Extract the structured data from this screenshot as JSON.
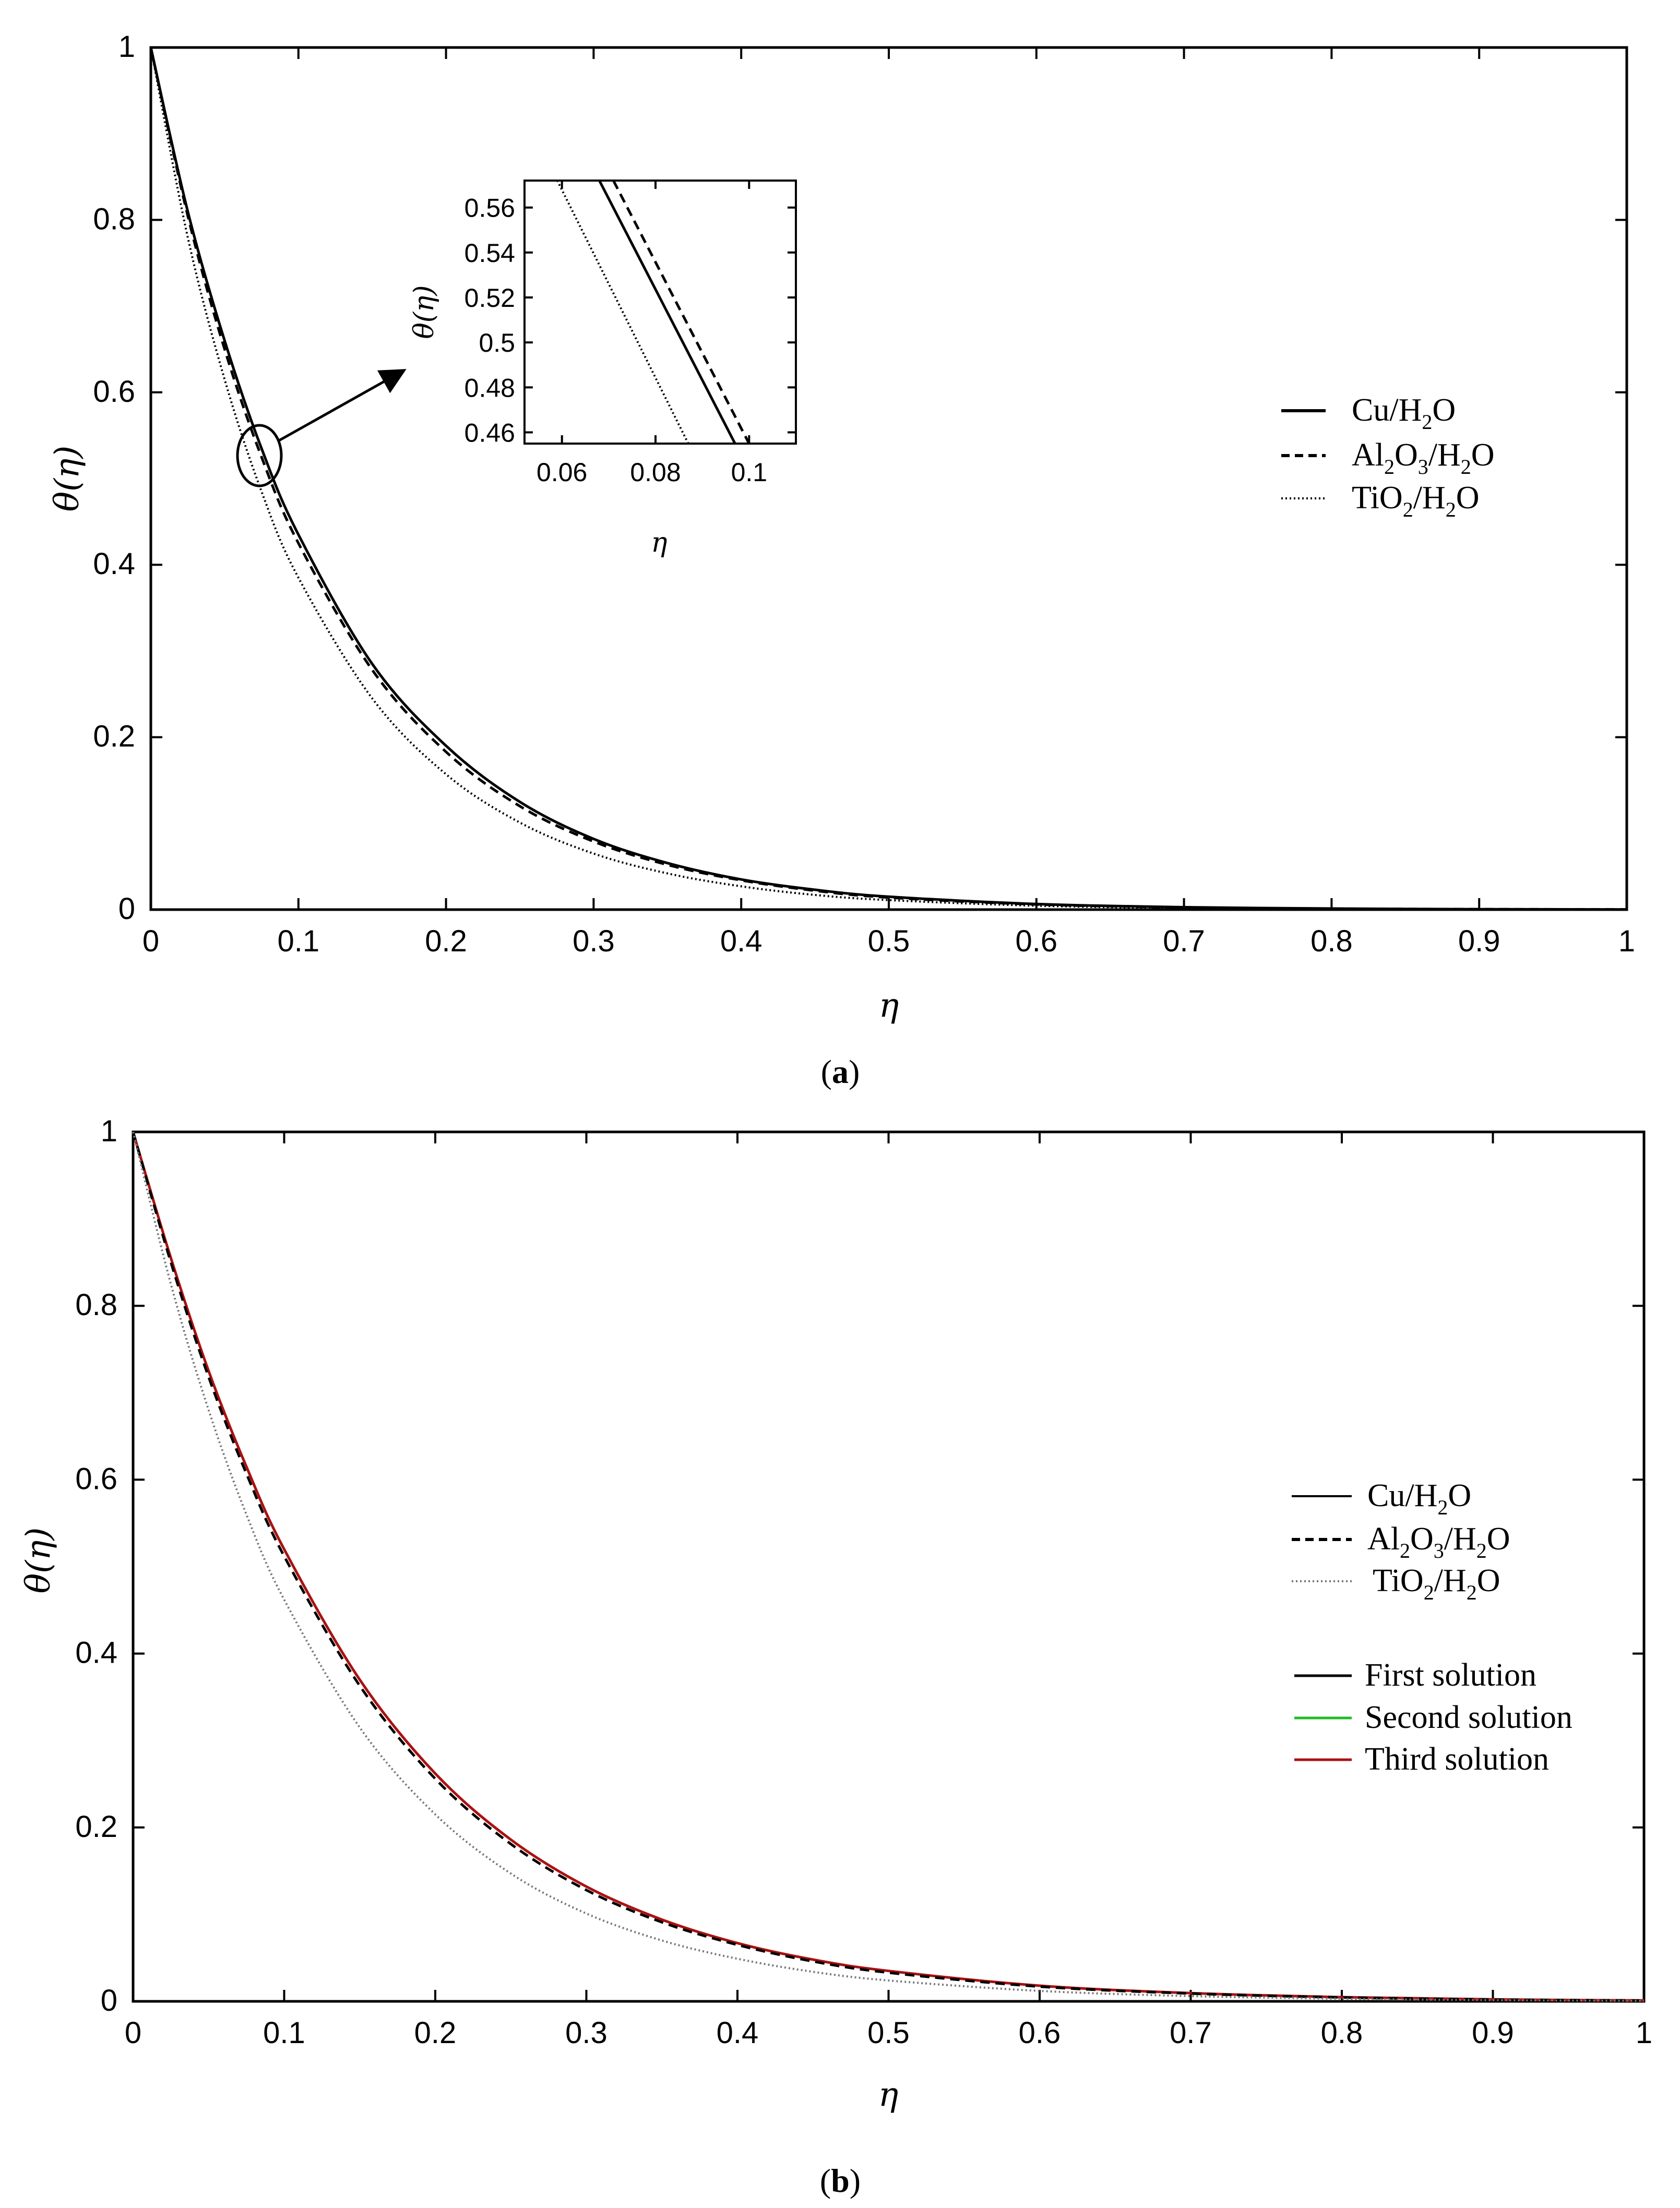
{
  "panels": {
    "a": {
      "caption_open": "(",
      "caption_letter": "a",
      "caption_close": ")",
      "legend": {
        "cu": [
          "Cu/H",
          "2",
          "O"
        ],
        "al": [
          "Al",
          "2",
          "O",
          "3",
          "/H",
          "2",
          "O"
        ],
        "ti": [
          "TiO",
          "2",
          "/H",
          "2",
          "O"
        ]
      }
    },
    "b": {
      "caption_open": "(",
      "caption_letter": "b",
      "caption_close": ")",
      "legend": {
        "cu": [
          "Cu/H",
          "2",
          "O"
        ],
        "al": [
          "Al",
          "2",
          "O",
          "3",
          "/H",
          "2",
          "O"
        ],
        "ti": [
          "TiO",
          "2",
          "/H",
          "2",
          "O"
        ],
        "first": "First solution",
        "second": "Second solution",
        "third": "Third solution"
      }
    }
  },
  "colors": {
    "axis": "#000000",
    "first_solution": "#000000",
    "second_solution": "#22bb22",
    "third_solution": "#aa1111",
    "ti_b": "#777777"
  },
  "chart_data": [
    {
      "type": "line",
      "panel": "a",
      "xlabel": "η",
      "ylabel": "θ(η)",
      "xlim": [
        0,
        1
      ],
      "ylim": [
        0,
        1
      ],
      "xticks": [
        "0",
        "0.1",
        "0.2",
        "0.3",
        "0.4",
        "0.5",
        "0.6",
        "0.7",
        "0.8",
        "0.9",
        "1"
      ],
      "yticks": [
        "0",
        "0.2",
        "0.4",
        "0.6",
        "0.8",
        "1"
      ],
      "series": [
        {
          "name": "Cu/H2O",
          "style": "solid",
          "x": [
            0,
            0.025,
            0.05,
            0.075,
            0.1,
            0.15,
            0.2,
            0.25,
            0.3,
            0.35,
            0.4,
            0.45,
            0.5,
            0.6,
            0.7,
            0.8,
            0.9,
            1
          ],
          "y": [
            1,
            0.81,
            0.66,
            0.535,
            0.435,
            0.285,
            0.19,
            0.125,
            0.082,
            0.054,
            0.035,
            0.023,
            0.015,
            0.0065,
            0.0028,
            0.0012,
            0.0005,
            0.0002
          ]
        },
        {
          "name": "Al2O3/H2O",
          "style": "dashed",
          "x": [
            0,
            0.025,
            0.05,
            0.075,
            0.1,
            0.15,
            0.2,
            0.25,
            0.3,
            0.35,
            0.4,
            0.45,
            0.5,
            0.6,
            0.7,
            0.8,
            0.9,
            1
          ],
          "y": [
            1,
            0.805,
            0.65,
            0.525,
            0.425,
            0.278,
            0.183,
            0.12,
            0.079,
            0.052,
            0.034,
            0.022,
            0.014,
            0.006,
            0.0026,
            0.0011,
            0.0005,
            0.0002
          ]
        },
        {
          "name": "TiO2/H2O",
          "style": "dotted",
          "x": [
            0,
            0.025,
            0.05,
            0.075,
            0.1,
            0.15,
            0.2,
            0.25,
            0.3,
            0.35,
            0.4,
            0.45,
            0.5,
            0.6,
            0.7,
            0.8,
            0.9,
            1
          ],
          "y": [
            1,
            0.78,
            0.615,
            0.485,
            0.385,
            0.245,
            0.157,
            0.101,
            0.065,
            0.042,
            0.027,
            0.017,
            0.011,
            0.0045,
            0.0019,
            0.0008,
            0.0003,
            0.0001
          ]
        }
      ],
      "inset": {
        "xlabel": "η",
        "ylabel": "θ(η)",
        "xlim": [
          0.052,
          0.11
        ],
        "ylim": [
          0.455,
          0.572
        ],
        "xticks": [
          "0.06",
          "0.08",
          "0.1"
        ],
        "yticks": [
          "0.46",
          "0.48",
          "0.5",
          "0.52",
          "0.54",
          "0.56"
        ],
        "series": [
          {
            "name": "Cu/H2O",
            "style": "solid",
            "x": [
              0.068,
              0.097
            ],
            "y": [
              0.572,
              0.455
            ]
          },
          {
            "name": "Al2O3/H2O",
            "style": "dashed",
            "x": [
              0.071,
              0.1
            ],
            "y": [
              0.572,
              0.455
            ]
          },
          {
            "name": "TiO2/H2O",
            "style": "dotted",
            "x": [
              0.059,
              0.087
            ],
            "y": [
              0.572,
              0.455
            ]
          }
        ]
      }
    },
    {
      "type": "line",
      "panel": "b",
      "xlabel": "η",
      "ylabel": "θ(η)",
      "xlim": [
        0,
        1
      ],
      "ylim": [
        0,
        1
      ],
      "xticks": [
        "0",
        "0.1",
        "0.2",
        "0.3",
        "0.4",
        "0.5",
        "0.6",
        "0.7",
        "0.8",
        "0.9",
        "1"
      ],
      "yticks": [
        "0",
        "0.2",
        "0.4",
        "0.6",
        "0.8",
        "1"
      ],
      "series": [
        {
          "name": "Cu/H2O (Third solution)",
          "style": "solid",
          "color": "#aa1111",
          "x": [
            0,
            0.025,
            0.05,
            0.075,
            0.1,
            0.15,
            0.2,
            0.25,
            0.3,
            0.35,
            0.4,
            0.45,
            0.5,
            0.6,
            0.7,
            0.8,
            0.9,
            1
          ],
          "y": [
            1,
            0.855,
            0.725,
            0.615,
            0.52,
            0.37,
            0.262,
            0.186,
            0.132,
            0.094,
            0.067,
            0.048,
            0.035,
            0.018,
            0.0095,
            0.0048,
            0.0022,
            0.001
          ]
        },
        {
          "name": "Al2O3/H2O",
          "style": "dashed",
          "color": "#000000",
          "x": [
            0,
            0.025,
            0.05,
            0.075,
            0.1,
            0.15,
            0.2,
            0.25,
            0.3,
            0.35,
            0.4,
            0.45,
            0.5,
            0.6,
            0.7,
            0.8,
            0.9,
            1
          ],
          "y": [
            1,
            0.85,
            0.718,
            0.607,
            0.512,
            0.363,
            0.256,
            0.181,
            0.128,
            0.091,
            0.065,
            0.046,
            0.033,
            0.017,
            0.009,
            0.0045,
            0.002,
            0.0009
          ]
        },
        {
          "name": "TiO2/H2O",
          "style": "dotted",
          "color": "#777777",
          "x": [
            0,
            0.025,
            0.05,
            0.075,
            0.1,
            0.15,
            0.2,
            0.25,
            0.3,
            0.35,
            0.4,
            0.45,
            0.5,
            0.6,
            0.7,
            0.8,
            0.9,
            1
          ],
          "y": [
            1,
            0.825,
            0.68,
            0.56,
            0.462,
            0.315,
            0.215,
            0.147,
            0.101,
            0.07,
            0.049,
            0.034,
            0.024,
            0.012,
            0.006,
            0.003,
            0.0014,
            0.0006
          ]
        }
      ]
    }
  ]
}
